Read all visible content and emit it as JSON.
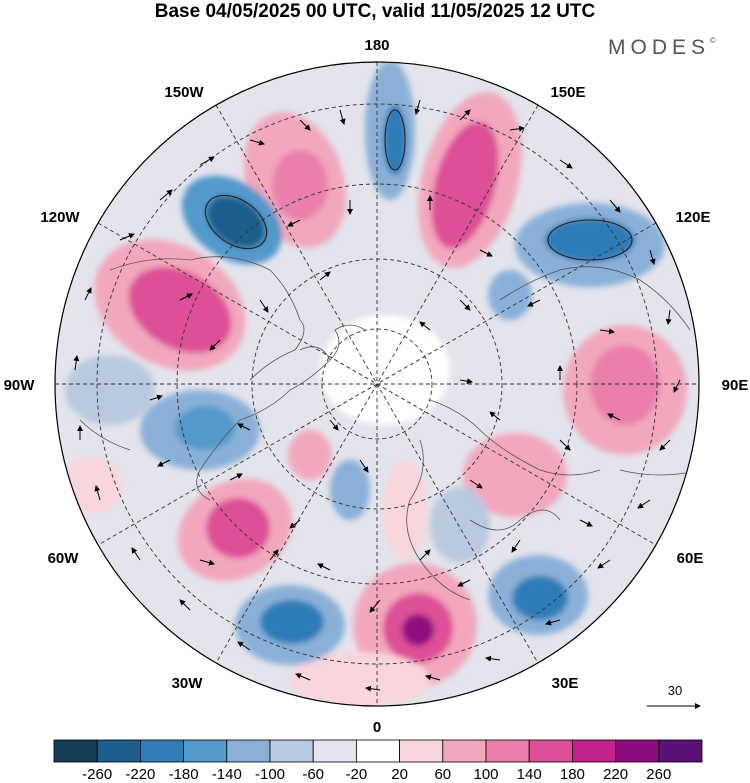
{
  "header": {
    "title": "Base 04/05/2025 00 UTC, valid 11/05/2025 12 UTC",
    "brand": "MODES",
    "brand_mark": "©"
  },
  "map": {
    "projection": "north-polar-stereographic",
    "longitude_labels": {
      "top": "180",
      "top_right": "150E",
      "upper_right": "120E",
      "right": "90E",
      "lower_right": "60E",
      "bottom_right": "30E",
      "bottom": "0",
      "bottom_left": "30W",
      "lower_left": "60W",
      "left": "90W",
      "upper_left": "120W",
      "top_left": "150W"
    },
    "reference_vector_label": "30",
    "colors": {
      "negative_strong": "#1c4f78",
      "negative_mid": "#4a8fc1",
      "negative_weak": "#b9c9e0",
      "neutral_grey": "#dcdce6",
      "positive_weak": "#f4c2cf",
      "positive_mid": "#e46ba1",
      "positive_strong": "#b01a7e"
    }
  },
  "colorbar": {
    "labels": [
      "-260",
      "-220",
      "-180",
      "-140",
      "-100",
      "-60",
      "-20",
      "20",
      "60",
      "100",
      "140",
      "180",
      "220",
      "260"
    ],
    "colors": [
      "#173e57",
      "#1d5f8c",
      "#2f7cb7",
      "#5399cb",
      "#8ab0d8",
      "#b9c9e0",
      "#e2e4ef",
      "#ffffff",
      "#f9d5dc",
      "#f2a7bd",
      "#ea7fab",
      "#dd4f96",
      "#c4218a",
      "#8e0b7f",
      "#5b1278"
    ]
  }
}
